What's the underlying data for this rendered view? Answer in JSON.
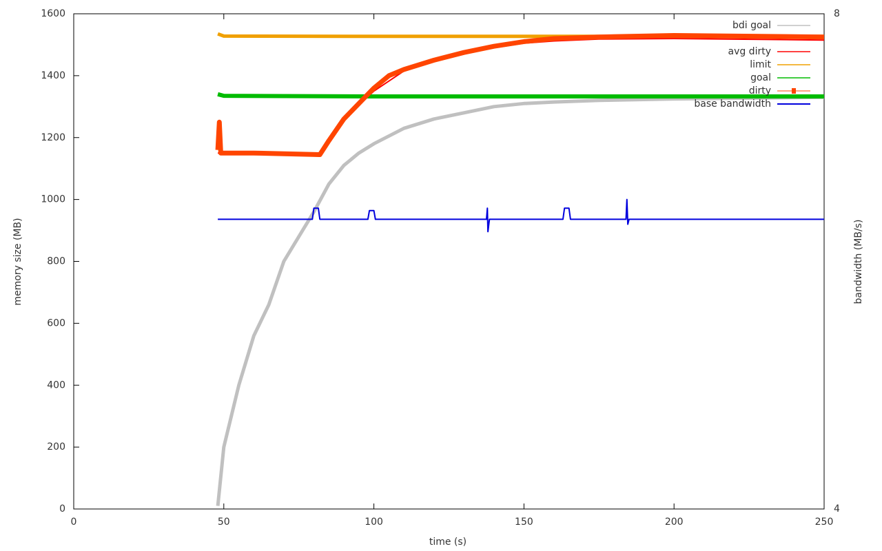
{
  "chart_data": {
    "type": "line",
    "xlabel": "time (s)",
    "ylabel": "memory size (MB)",
    "y2label": "bandwidth (MB/s)",
    "xlim": [
      0,
      250
    ],
    "xticks": [
      0,
      50,
      100,
      150,
      200,
      250
    ],
    "ylim": [
      0,
      1600
    ],
    "yticks": [
      0,
      200,
      400,
      600,
      800,
      1000,
      1200,
      1400,
      1600
    ],
    "y2lim": [
      4,
      8
    ],
    "y2ticks": [
      4,
      8
    ],
    "grid": false,
    "legend": "top-right",
    "series": [
      {
        "name": "bdi goal",
        "color": "#c0c0c0",
        "width": 5,
        "x": [
          48,
          50,
          55,
          60,
          65,
          70,
          75,
          80,
          85,
          90,
          95,
          100,
          110,
          120,
          130,
          140,
          150,
          160,
          175,
          200,
          250
        ],
        "values": [
          10,
          200,
          400,
          560,
          660,
          800,
          880,
          960,
          1050,
          1110,
          1150,
          1180,
          1230,
          1260,
          1280,
          1300,
          1310,
          1315,
          1320,
          1325,
          1330
        ]
      },
      {
        "name": "avg dirty",
        "color": "#ff0000",
        "width": 2,
        "x": [
          48,
          60,
          82,
          85,
          90,
          95,
          100,
          110,
          120,
          130,
          140,
          150,
          160,
          175,
          200,
          250
        ],
        "values": [
          1150,
          1148,
          1140,
          1185,
          1255,
          1305,
          1350,
          1415,
          1445,
          1470,
          1490,
          1505,
          1512,
          1518,
          1520,
          1515
        ]
      },
      {
        "name": "limit",
        "color": "#f0a000",
        "width": 5,
        "x": [
          48,
          50,
          100,
          150,
          200,
          250
        ],
        "values": [
          1535,
          1528,
          1527,
          1527,
          1527,
          1527
        ]
      },
      {
        "name": "goal",
        "color": "#00bb00",
        "width": 6,
        "x": [
          48,
          50,
          100,
          150,
          200,
          250
        ],
        "values": [
          1340,
          1335,
          1333,
          1333,
          1333,
          1333
        ]
      },
      {
        "name": "dirty",
        "color": "#ff4500",
        "width": 7,
        "x": [
          48,
          48.5,
          49,
          60,
          82,
          85,
          90,
          95,
          100,
          105,
          110,
          120,
          130,
          140,
          150,
          160,
          175,
          200,
          250
        ],
        "values": [
          1160,
          1250,
          1150,
          1150,
          1145,
          1190,
          1260,
          1310,
          1360,
          1400,
          1420,
          1450,
          1475,
          1495,
          1510,
          1520,
          1525,
          1530,
          1525
        ]
      },
      {
        "name": "base bandwidth",
        "color": "#0000dd",
        "width": 2,
        "axis": "y2",
        "x": [
          48,
          79.5,
          80,
          81.5,
          82,
          98,
          98.5,
          100,
          100.5,
          137.5,
          137.8,
          138,
          138.5,
          163,
          163.5,
          165,
          165.5,
          184,
          184.3,
          184.6,
          185,
          250
        ],
        "values": [
          6.34,
          6.34,
          6.43,
          6.43,
          6.34,
          6.34,
          6.41,
          6.41,
          6.34,
          6.34,
          6.43,
          6.24,
          6.34,
          6.34,
          6.43,
          6.43,
          6.34,
          6.34,
          6.5,
          6.3,
          6.34,
          6.34
        ]
      }
    ]
  }
}
